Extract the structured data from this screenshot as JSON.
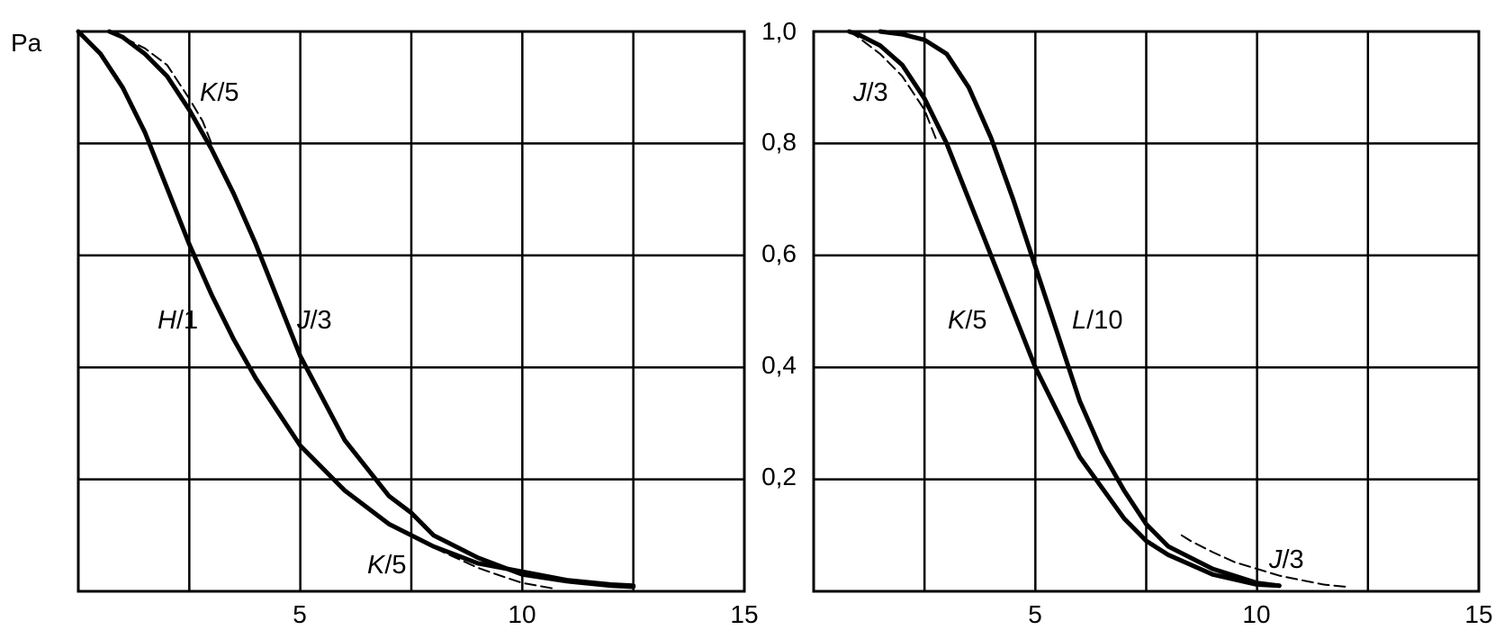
{
  "chart_data": [
    {
      "type": "line",
      "title": "",
      "xlabel": "",
      "ylabel": "Pa",
      "xlim": [
        0,
        15
      ],
      "ylim": [
        0,
        1.0
      ],
      "x_ticks": [
        "5",
        "10",
        "15"
      ],
      "y_ticks": [],
      "grid": true,
      "series": [
        {
          "name": "H/1",
          "style": "solid",
          "label_parts": [
            "H",
            "/1"
          ],
          "x": [
            0,
            0.5,
            1.0,
            1.5,
            2.0,
            2.5,
            3.0,
            3.5,
            4.0,
            4.5,
            5.0,
            6.0,
            7.0,
            8.0,
            9.0,
            10.0,
            11.0,
            12.0,
            12.5
          ],
          "y": [
            1.0,
            0.96,
            0.9,
            0.82,
            0.72,
            0.62,
            0.53,
            0.45,
            0.38,
            0.32,
            0.26,
            0.18,
            0.12,
            0.08,
            0.05,
            0.035,
            0.02,
            0.012,
            0.01
          ]
        },
        {
          "name": "J/3",
          "style": "solid",
          "label_parts": [
            "J",
            "/3"
          ],
          "x": [
            0.7,
            1.0,
            1.5,
            2.0,
            2.5,
            3.0,
            3.5,
            4.0,
            4.5,
            5.0,
            6.0,
            7.0,
            7.5,
            8.0,
            9.0,
            10.0,
            11.0,
            12.0,
            12.5
          ],
          "y": [
            1.0,
            0.99,
            0.96,
            0.92,
            0.86,
            0.79,
            0.71,
            0.62,
            0.52,
            0.42,
            0.27,
            0.17,
            0.14,
            0.1,
            0.06,
            0.03,
            0.018,
            0.01,
            0.008
          ]
        },
        {
          "name": "K/5",
          "style": "dashed",
          "label_parts": [
            "K",
            "/5"
          ],
          "x": [
            0.7,
            1.0,
            1.5,
            2.0,
            2.5,
            2.8,
            3.0
          ],
          "y": [
            1.0,
            0.99,
            0.97,
            0.94,
            0.88,
            0.84,
            0.8
          ]
        },
        {
          "name": "K/5",
          "style": "dashed",
          "label_parts": [
            "K",
            "/5"
          ],
          "x": [
            7.7,
            8.0,
            8.5,
            9.0,
            9.5,
            10.0,
            10.7
          ],
          "y": [
            0.09,
            0.078,
            0.06,
            0.042,
            0.028,
            0.015,
            0.005
          ]
        }
      ]
    },
    {
      "type": "line",
      "title": "",
      "xlabel": "",
      "ylabel": "",
      "xlim": [
        0,
        15
      ],
      "ylim": [
        0,
        1.0
      ],
      "x_ticks": [
        "5",
        "10",
        "15"
      ],
      "y_ticks": [
        "1,0",
        "0,8",
        "0,6",
        "0,4",
        "0,2"
      ],
      "grid": true,
      "series": [
        {
          "name": "K/5",
          "style": "solid",
          "label_parts": [
            "K",
            "/5"
          ],
          "x": [
            0.8,
            1.0,
            1.5,
            2.0,
            2.5,
            3.0,
            3.5,
            4.0,
            4.5,
            5.0,
            5.5,
            6.0,
            7.0,
            7.5,
            8.0,
            9.0,
            10.0,
            10.5
          ],
          "y": [
            1.0,
            0.995,
            0.975,
            0.94,
            0.88,
            0.8,
            0.7,
            0.6,
            0.5,
            0.4,
            0.32,
            0.24,
            0.13,
            0.09,
            0.065,
            0.03,
            0.012,
            0.01
          ]
        },
        {
          "name": "L/10",
          "style": "solid",
          "label_parts": [
            "L",
            "/10"
          ],
          "x": [
            1.5,
            2.0,
            2.5,
            3.0,
            3.5,
            4.0,
            4.5,
            5.0,
            5.5,
            6.0,
            6.5,
            7.0,
            7.5,
            8.0,
            9.0,
            10.0,
            10.5
          ],
          "y": [
            1.0,
            0.995,
            0.985,
            0.96,
            0.9,
            0.81,
            0.7,
            0.58,
            0.46,
            0.34,
            0.25,
            0.18,
            0.12,
            0.08,
            0.04,
            0.015,
            0.01
          ]
        },
        {
          "name": "J/3",
          "style": "dashed",
          "label_parts": [
            "J",
            "/3"
          ],
          "x": [
            0.8,
            1.0,
            1.5,
            2.0,
            2.5,
            2.8
          ],
          "y": [
            1.0,
            0.99,
            0.96,
            0.92,
            0.86,
            0.8
          ]
        },
        {
          "name": "J/3",
          "style": "dashed",
          "label_parts": [
            "J",
            "/3"
          ],
          "x": [
            8.3,
            8.5,
            9.0,
            9.5,
            10.0,
            10.5,
            11.0,
            11.5,
            12.0
          ],
          "y": [
            0.1,
            0.09,
            0.07,
            0.052,
            0.04,
            0.028,
            0.02,
            0.012,
            0.008
          ]
        }
      ]
    }
  ]
}
